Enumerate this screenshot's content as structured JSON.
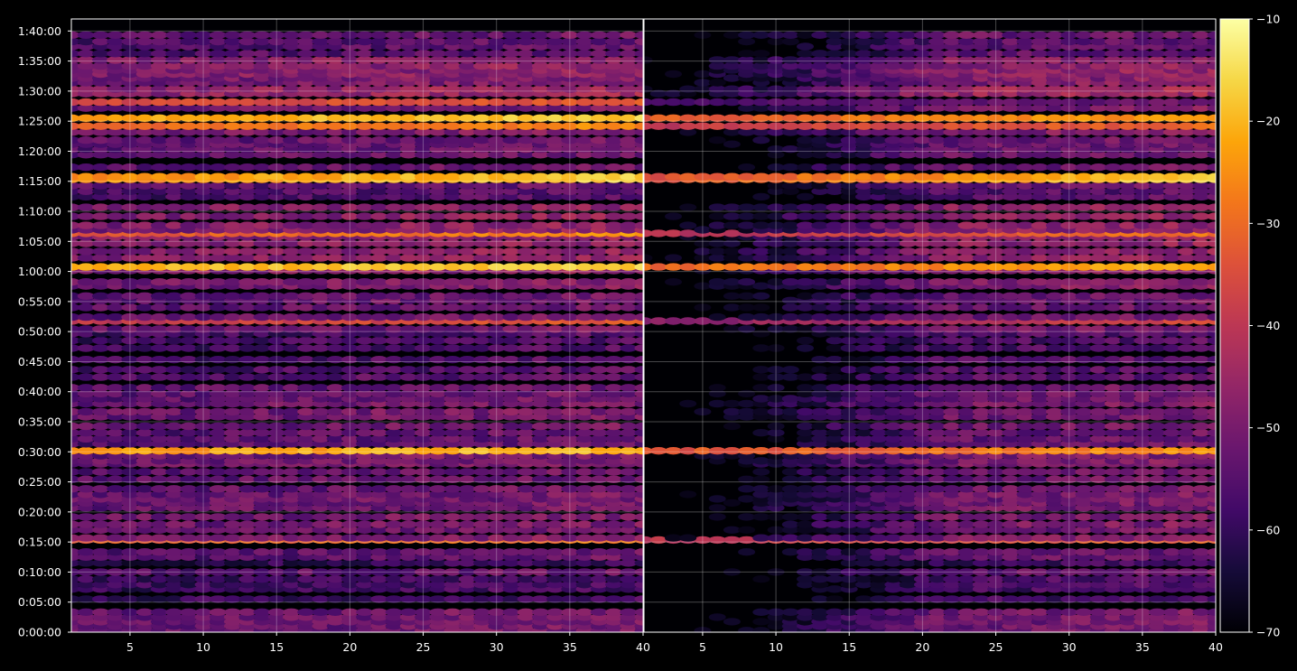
{
  "chart_data": {
    "type": "heatmap",
    "title": "",
    "xlabel": "",
    "ylabel": "",
    "panels": [
      {
        "name": "",
        "xlim": [
          1,
          40
        ],
        "xticks": [
          5,
          10,
          15,
          20,
          25,
          30,
          35,
          40
        ]
      },
      {
        "name": "",
        "xlim": [
          1,
          40
        ],
        "xticks": [
          5,
          10,
          15,
          20,
          25,
          30,
          35,
          40
        ]
      }
    ],
    "x_tick_labels": [
      "5",
      "10",
      "15",
      "20",
      "25",
      "30",
      "35",
      "40"
    ],
    "y_tick_labels": [
      "0:00:00",
      "0:05:00",
      "0:10:00",
      "0:15:00",
      "0:20:00",
      "0:25:00",
      "0:30:00",
      "0:35:00",
      "0:40:00",
      "0:45:00",
      "0:50:00",
      "0:55:00",
      "1:00:00",
      "1:05:00",
      "1:10:00",
      "1:15:00",
      "1:20:00",
      "1:25:00",
      "1:30:00",
      "1:35:00",
      "1:40:00"
    ],
    "y_tick_seconds": [
      0,
      300,
      600,
      900,
      1200,
      1500,
      1800,
      2100,
      2400,
      2700,
      3000,
      3300,
      3600,
      3900,
      4200,
      4500,
      4800,
      5100,
      5400,
      5700,
      6000
    ],
    "ylim_seconds": [
      0,
      6120
    ],
    "colorbar": {
      "cmap": "inferno",
      "range": [
        -70,
        -10
      ],
      "ticks": [
        -70,
        -60,
        -50,
        -40,
        -30,
        -20,
        -10
      ],
      "tick_labels": [
        "−70",
        "−60",
        "−50",
        "−40",
        "−30",
        "−20",
        "−10"
      ]
    },
    "grid": true,
    "background": "#000000",
    "rows_seconds": [
      15,
      60,
      105,
      150,
      200,
      330,
      430,
      475,
      530,
      600,
      690,
      750,
      800,
      920,
      940,
      1020,
      1075,
      1150,
      1240,
      1290,
      1330,
      1375,
      1430,
      1525,
      1600,
      1680,
      1710,
      1760,
      1810,
      1880,
      1930,
      1990,
      2055,
      2150,
      2200,
      2280,
      2330,
      2380,
      2440,
      2545,
      2620,
      2720,
      2835,
      2910,
      2980,
      3025,
      3105,
      3145,
      3240,
      3310,
      3355,
      3455,
      3495,
      3610,
      3645,
      3735,
      3800,
      3880,
      3945,
      3980,
      4015,
      4060,
      4150,
      4240,
      4345,
      4400,
      4455,
      4520,
      4545,
      4640,
      4765,
      4820,
      4870,
      4910,
      4990,
      5050,
      5130,
      5230,
      5290,
      5375,
      5420,
      5485,
      5530,
      5570,
      5610,
      5650,
      5710,
      5775,
      5845,
      5895,
      5960
    ],
    "bands": [
      {
        "t0": 0,
        "t1": 330,
        "level": -54
      },
      {
        "t0": 330,
        "t1": 550,
        "level": -60
      },
      {
        "t0": 550,
        "t1": 640,
        "level": -56
      },
      {
        "t0": 640,
        "t1": 720,
        "level": -62
      },
      {
        "t0": 720,
        "t1": 820,
        "level": -56
      },
      {
        "t0": 820,
        "t1": 900,
        "level": -60
      },
      {
        "t0": 900,
        "t1": 960,
        "level": -52
      },
      {
        "t0": 960,
        "t1": 1060,
        "level": -55
      },
      {
        "t0": 1060,
        "t1": 1160,
        "level": -53
      },
      {
        "t0": 1160,
        "t1": 1420,
        "level": -54
      },
      {
        "t0": 1420,
        "t1": 1620,
        "level": -55
      },
      {
        "t0": 1620,
        "t1": 1840,
        "level": -53
      },
      {
        "t0": 1840,
        "t1": 2000,
        "level": -56
      },
      {
        "t0": 2000,
        "t1": 2200,
        "level": -54
      },
      {
        "t0": 2200,
        "t1": 2320,
        "level": -53
      },
      {
        "t0": 2320,
        "t1": 2480,
        "level": -55
      },
      {
        "t0": 2480,
        "t1": 2580,
        "level": -57
      },
      {
        "t0": 2580,
        "t1": 2760,
        "level": -58
      },
      {
        "t0": 2760,
        "t1": 3000,
        "level": -59
      },
      {
        "t0": 3000,
        "t1": 3200,
        "level": -54
      },
      {
        "t0": 3200,
        "t1": 3440,
        "level": -55
      },
      {
        "t0": 3440,
        "t1": 3540,
        "level": -52
      },
      {
        "t0": 3540,
        "t1": 3700,
        "level": -50
      },
      {
        "t0": 3700,
        "t1": 4250,
        "level": -50
      },
      {
        "t0": 4250,
        "t1": 4420,
        "level": -58
      },
      {
        "t0": 4420,
        "t1": 4640,
        "level": -56
      },
      {
        "t0": 4640,
        "t1": 4940,
        "level": -55
      },
      {
        "t0": 4940,
        "t1": 5020,
        "level": -52
      },
      {
        "t0": 5020,
        "t1": 5320,
        "level": -53
      },
      {
        "t0": 5320,
        "t1": 5470,
        "level": -48
      },
      {
        "t0": 5470,
        "t1": 5560,
        "level": -52
      },
      {
        "t0": 5560,
        "t1": 5760,
        "level": -50
      },
      {
        "t0": 5760,
        "t1": 5910,
        "level": -57
      },
      {
        "t0": 5910,
        "t1": 6000,
        "level": -55
      }
    ],
    "highlight_rows": [
      {
        "t": 1800,
        "panel1": [
          -27,
          -19
        ],
        "panel2": [
          -40,
          -24
        ]
      },
      {
        "t": 1735,
        "panel1": [
          -33,
          -21
        ],
        "panel2": [
          -50,
          -38
        ]
      },
      {
        "t": 1045,
        "panel1": [
          -27,
          -16
        ],
        "panel2": [
          -41,
          -15
        ]
      },
      {
        "t": 900,
        "panel1": [
          -35,
          -28
        ],
        "panel2": [
          -45,
          -32
        ]
      },
      {
        "t": 3650,
        "panel1": [
          -21,
          -17
        ],
        "panel2": [
          -36,
          -21
        ]
      },
      {
        "t": 3535,
        "panel1": [
          -37,
          -29
        ],
        "panel2": [
          -56,
          -40
        ]
      },
      {
        "t": 3980,
        "panel1": [
          -40,
          -24
        ],
        "panel2": [
          -50,
          -28
        ]
      },
      {
        "t": 4530,
        "panel1": [
          -30,
          -17
        ],
        "panel2": [
          -44,
          -16
        ]
      },
      {
        "t": 5110,
        "panel1": [
          -24,
          -17
        ],
        "panel2": [
          -38,
          -22
        ]
      },
      {
        "t": 5030,
        "panel1": [
          -34,
          -25
        ],
        "panel2": [
          -46,
          -30
        ]
      },
      {
        "t": 5295,
        "panel1": [
          -38,
          -33
        ],
        "panel2": [
          -60,
          -52
        ]
      },
      {
        "t": 3095,
        "panel1": [
          -44,
          -33
        ],
        "panel2": [
          -55,
          -36
        ]
      }
    ]
  }
}
